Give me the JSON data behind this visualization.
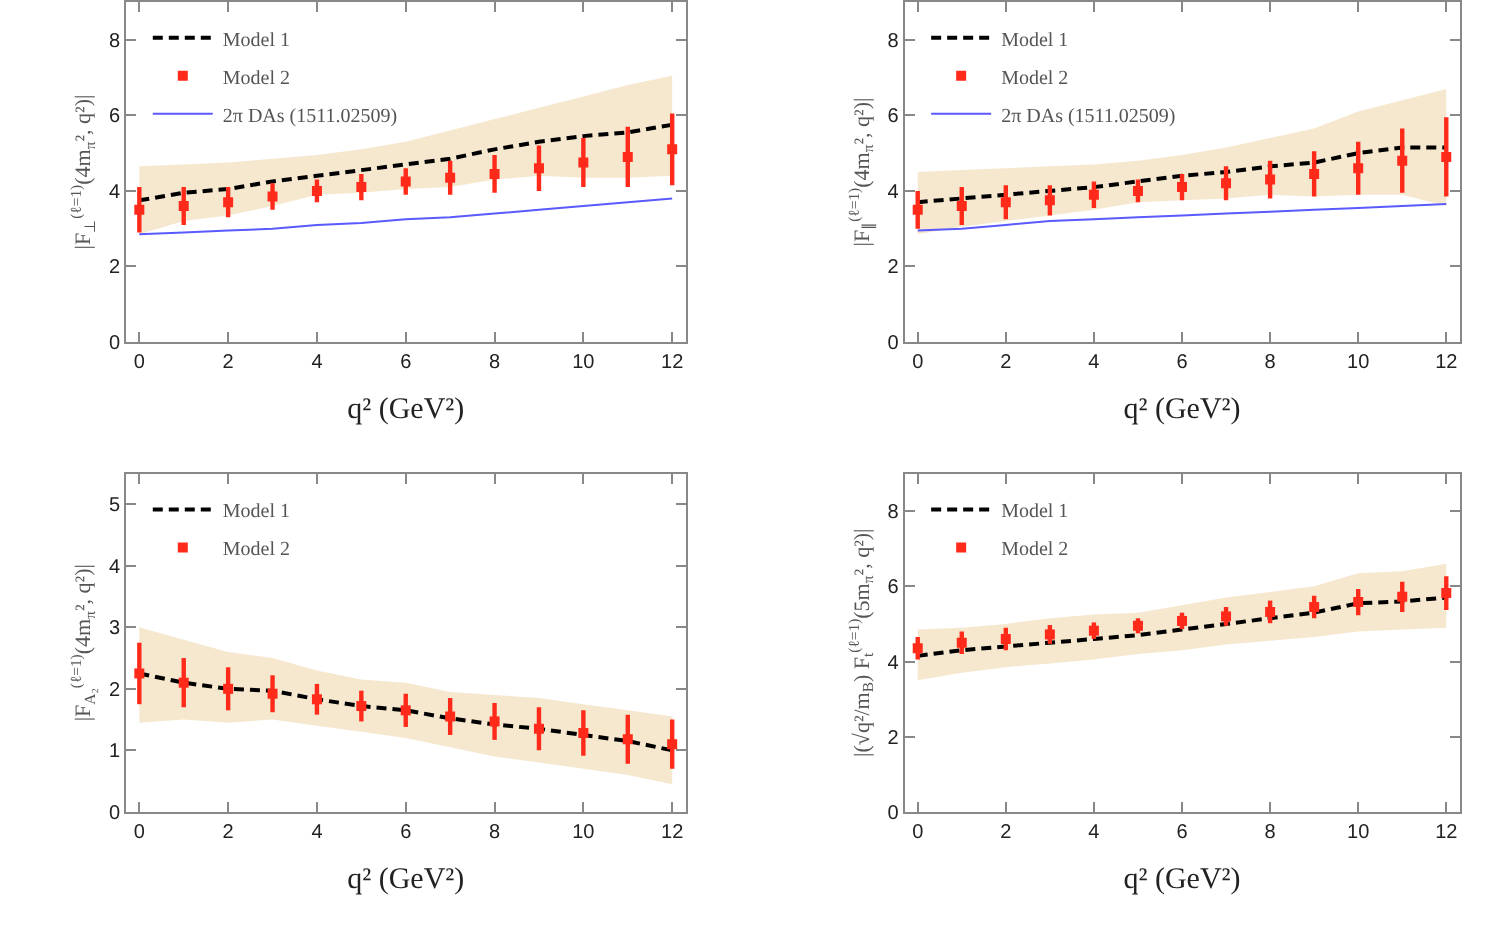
{
  "chart_data": [
    {
      "type": "line",
      "xlabel": "q² (GeV²)",
      "ylabel": "|F$_{⊥}$$^{(ℓ=1)}$(4m$_{π}$², q²)|",
      "x": [
        0,
        1,
        2,
        3,
        4,
        5,
        6,
        7,
        8,
        9,
        10,
        11,
        12
      ],
      "xlim": [
        -0.3,
        12.3
      ],
      "xticks": [
        0,
        2,
        4,
        6,
        8,
        10,
        12
      ],
      "ylim": [
        0,
        9
      ],
      "yticks": [
        0,
        2,
        4,
        6,
        8
      ],
      "legend": "top left",
      "series": [
        {
          "name": "Model 1",
          "color": "#000000",
          "line_style": "dashed",
          "values": [
            3.75,
            3.95,
            4.05,
            4.25,
            4.4,
            4.55,
            4.7,
            4.85,
            5.1,
            5.3,
            5.45,
            5.55,
            5.75
          ],
          "lower": [
            2.85,
            3.2,
            3.35,
            3.6,
            3.9,
            3.95,
            4.05,
            4.1,
            4.3,
            4.4,
            4.35,
            4.35,
            4.4
          ],
          "upper": [
            4.65,
            4.7,
            4.75,
            4.85,
            4.95,
            5.1,
            5.3,
            5.6,
            5.9,
            6.2,
            6.5,
            6.8,
            7.05
          ]
        },
        {
          "name": "Model 2",
          "type": "scatter",
          "color": "#ff2a1a",
          "marker": "square",
          "values": [
            3.5,
            3.6,
            3.7,
            3.85,
            4.0,
            4.1,
            4.25,
            4.35,
            4.45,
            4.6,
            4.75,
            4.9,
            5.1
          ],
          "errors": [
            0.6,
            0.5,
            0.4,
            0.35,
            0.3,
            0.35,
            0.35,
            0.45,
            0.5,
            0.6,
            0.65,
            0.8,
            0.95
          ]
        },
        {
          "name": "2π DAs (1511.02509)",
          "type": "line",
          "color": "#5a5aff",
          "line_style": "solid",
          "values": [
            2.85,
            2.9,
            2.95,
            3.0,
            3.1,
            3.15,
            3.25,
            3.3,
            3.4,
            3.5,
            3.6,
            3.7,
            3.8
          ]
        }
      ]
    },
    {
      "type": "line",
      "xlabel": "q² (GeV²)",
      "ylabel": "|F$_{∥}$$^{(ℓ=1)}$(4m$_{π}$², q²)|",
      "x": [
        0,
        1,
        2,
        3,
        4,
        5,
        6,
        7,
        8,
        9,
        10,
        11,
        12
      ],
      "xlim": [
        -0.3,
        12.3
      ],
      "xticks": [
        0,
        2,
        4,
        6,
        8,
        10,
        12
      ],
      "ylim": [
        0,
        9
      ],
      "yticks": [
        0,
        2,
        4,
        6,
        8
      ],
      "legend": "top left",
      "series": [
        {
          "name": "Model 1",
          "color": "#000000",
          "line_style": "dashed",
          "values": [
            3.7,
            3.8,
            3.9,
            4.0,
            4.1,
            4.25,
            4.4,
            4.5,
            4.65,
            4.75,
            5.0,
            5.15,
            5.15
          ],
          "lower": [
            2.85,
            3.05,
            3.2,
            3.35,
            3.5,
            3.7,
            3.75,
            3.8,
            3.9,
            3.85,
            3.9,
            3.9,
            3.6
          ],
          "upper": [
            4.5,
            4.55,
            4.6,
            4.65,
            4.7,
            4.8,
            4.95,
            5.15,
            5.4,
            5.65,
            6.1,
            6.4,
            6.7
          ]
        },
        {
          "name": "Model 2",
          "type": "scatter",
          "color": "#ff2a1a",
          "marker": "square",
          "values": [
            3.5,
            3.6,
            3.7,
            3.75,
            3.9,
            4.0,
            4.1,
            4.2,
            4.3,
            4.45,
            4.6,
            4.8,
            4.9
          ],
          "errors": [
            0.5,
            0.5,
            0.45,
            0.4,
            0.35,
            0.3,
            0.35,
            0.45,
            0.5,
            0.6,
            0.7,
            0.85,
            1.05
          ]
        },
        {
          "name": "2π DAs (1511.02509)",
          "type": "line",
          "color": "#5a5aff",
          "line_style": "solid",
          "values": [
            2.95,
            3.0,
            3.1,
            3.2,
            3.25,
            3.3,
            3.35,
            3.4,
            3.45,
            3.5,
            3.55,
            3.6,
            3.65
          ]
        }
      ]
    },
    {
      "type": "line",
      "xlabel": "q² (GeV²)",
      "ylabel": "|F$_{A₂}$$^{(ℓ=1)}$(4m$_{π}$², q²)|",
      "x": [
        0,
        1,
        2,
        3,
        4,
        5,
        6,
        7,
        8,
        9,
        10,
        11,
        12
      ],
      "xlim": [
        -0.3,
        12.3
      ],
      "xticks": [
        0,
        2,
        4,
        6,
        8,
        10,
        12
      ],
      "ylim": [
        0,
        5.5
      ],
      "yticks": [
        0,
        1,
        2,
        3,
        4,
        5
      ],
      "legend": "top left",
      "series": [
        {
          "name": "Model 1",
          "color": "#000000",
          "line_style": "dashed",
          "values": [
            2.25,
            2.1,
            2.0,
            1.97,
            1.83,
            1.72,
            1.65,
            1.52,
            1.42,
            1.35,
            1.25,
            1.15,
            1.0
          ],
          "lower": [
            1.45,
            1.5,
            1.45,
            1.5,
            1.4,
            1.3,
            1.2,
            1.05,
            0.9,
            0.8,
            0.7,
            0.6,
            0.45
          ],
          "upper": [
            3.0,
            2.8,
            2.6,
            2.5,
            2.3,
            2.15,
            2.1,
            1.95,
            1.9,
            1.85,
            1.75,
            1.65,
            1.55
          ]
        },
        {
          "name": "Model 2",
          "type": "scatter",
          "color": "#ff2a1a",
          "marker": "square",
          "values": [
            2.25,
            2.1,
            2.0,
            1.92,
            1.83,
            1.72,
            1.65,
            1.55,
            1.47,
            1.35,
            1.28,
            1.18,
            1.1
          ],
          "errors": [
            0.5,
            0.4,
            0.35,
            0.3,
            0.25,
            0.25,
            0.27,
            0.3,
            0.3,
            0.35,
            0.37,
            0.4,
            0.4
          ]
        }
      ]
    },
    {
      "type": "line",
      "xlabel": "q² (GeV²)",
      "ylabel": "|(√q²/m$_{B}$) F$_{t}$$^{(ℓ=1)}$(5m$_{π}$², q²)|",
      "x": [
        0,
        1,
        2,
        3,
        4,
        5,
        6,
        7,
        8,
        9,
        10,
        11,
        12
      ],
      "xlim": [
        -0.3,
        12.3
      ],
      "xticks": [
        0,
        2,
        4,
        6,
        8,
        10,
        12
      ],
      "ylim": [
        0,
        9
      ],
      "yticks": [
        0,
        2,
        4,
        6,
        8
      ],
      "legend": "top left",
      "series": [
        {
          "name": "Model 1",
          "color": "#000000",
          "line_style": "dashed",
          "values": [
            4.15,
            4.3,
            4.4,
            4.5,
            4.6,
            4.7,
            4.85,
            5.0,
            5.15,
            5.3,
            5.55,
            5.6,
            5.7
          ],
          "lower": [
            3.5,
            3.7,
            3.85,
            3.95,
            4.05,
            4.2,
            4.3,
            4.45,
            4.55,
            4.65,
            4.8,
            4.85,
            4.9
          ],
          "upper": [
            4.85,
            4.9,
            5.0,
            5.15,
            5.25,
            5.3,
            5.5,
            5.7,
            5.85,
            6.0,
            6.35,
            6.4,
            6.6
          ]
        },
        {
          "name": "Model 2",
          "type": "scatter",
          "color": "#ff2a1a",
          "marker": "square",
          "values": [
            4.35,
            4.5,
            4.6,
            4.72,
            4.82,
            4.95,
            5.08,
            5.2,
            5.32,
            5.45,
            5.58,
            5.72,
            5.82
          ],
          "errors": [
            0.3,
            0.3,
            0.3,
            0.25,
            0.22,
            0.2,
            0.22,
            0.25,
            0.3,
            0.3,
            0.35,
            0.4,
            0.45
          ]
        }
      ]
    }
  ]
}
